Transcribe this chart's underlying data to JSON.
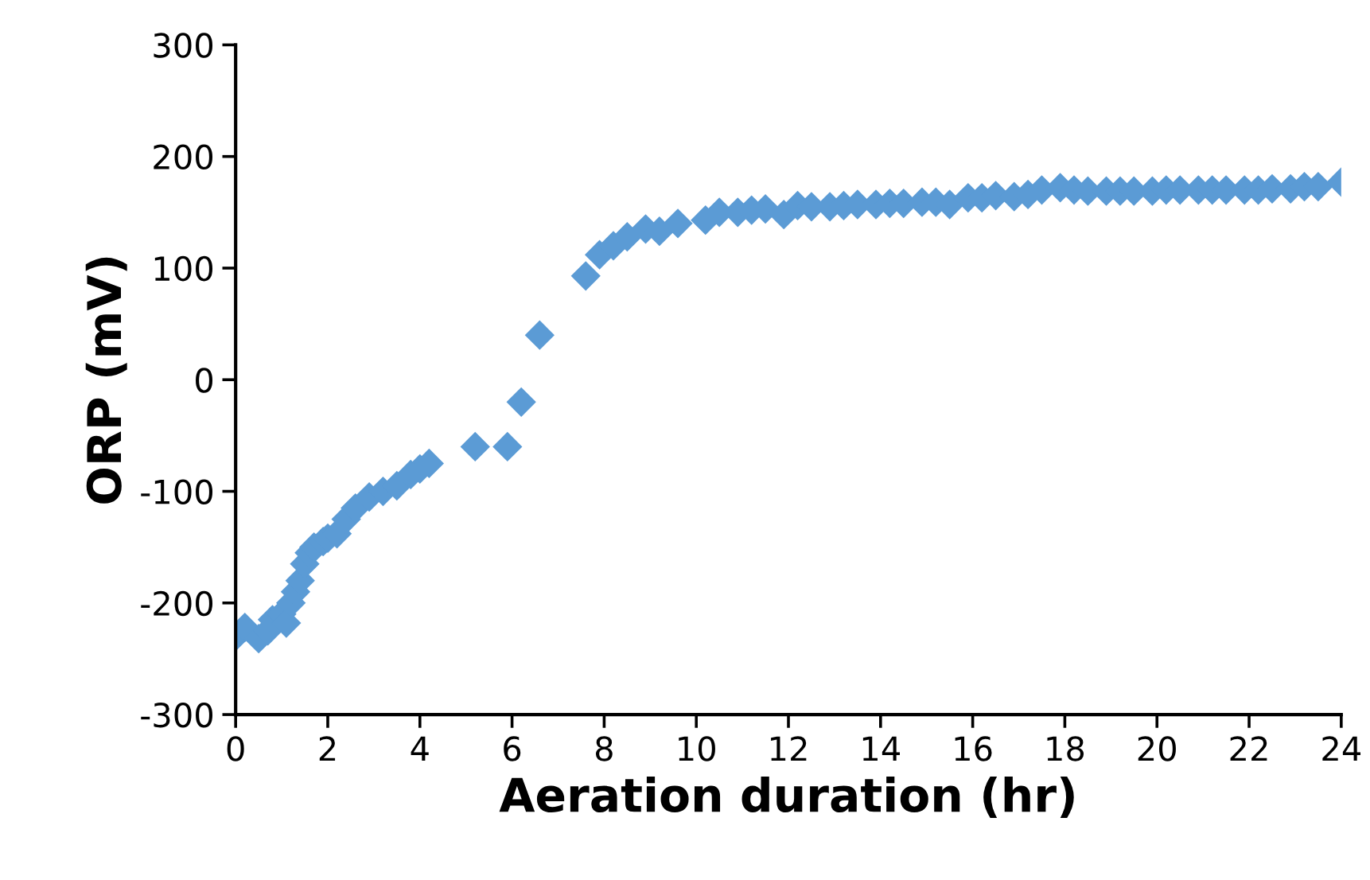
{
  "chart_data": {
    "type": "scatter",
    "xlabel": "Aeration duration (hr)",
    "ylabel": "ORP (mV)",
    "x": [
      0,
      0.2,
      0.5,
      0.7,
      0.8,
      1.0,
      1.1,
      1.2,
      1.3,
      1.4,
      1.5,
      1.6,
      1.7,
      1.9,
      2.0,
      2.2,
      2.4,
      2.6,
      2.9,
      3.2,
      3.5,
      3.8,
      4.0,
      4.2,
      5.2,
      5.9,
      6.2,
      6.6,
      7.6,
      7.9,
      8.2,
      8.5,
      8.9,
      9.2,
      9.6,
      10.2,
      10.5,
      10.9,
      11.2,
      11.5,
      11.9,
      12.2,
      12.5,
      12.9,
      13.2,
      13.5,
      13.9,
      14.2,
      14.5,
      14.9,
      15.2,
      15.5,
      15.9,
      16.2,
      16.5,
      16.9,
      17.2,
      17.5,
      17.9,
      18.2,
      18.5,
      18.9,
      19.2,
      19.5,
      19.9,
      20.2,
      20.5,
      20.9,
      21.2,
      21.5,
      21.9,
      22.2,
      22.5,
      22.9,
      23.2,
      23.5,
      24
    ],
    "series": [
      {
        "color": "#5b9bd5",
        "values": [
          -230,
          -222,
          -232,
          -225,
          -215,
          -210,
          -218,
          -200,
          -190,
          -180,
          -165,
          -155,
          -150,
          -145,
          -142,
          -138,
          -125,
          -115,
          -105,
          -100,
          -95,
          -85,
          -80,
          -75,
          -60,
          -60,
          -20,
          40,
          93,
          112,
          120,
          128,
          135,
          133,
          140,
          143,
          150,
          150,
          152,
          153,
          148,
          156,
          155,
          155,
          156,
          157,
          157,
          158,
          158,
          159,
          159,
          157,
          163,
          163,
          165,
          164,
          166,
          170,
          172,
          170,
          169,
          169,
          169,
          169,
          169,
          170,
          170,
          170,
          170,
          170,
          170,
          170,
          171,
          171,
          173,
          173,
          177
        ]
      }
    ],
    "xlim": [
      0,
      24
    ],
    "xticks": [
      0,
      2,
      4,
      6,
      8,
      10,
      12,
      14,
      16,
      18,
      20,
      22,
      24
    ],
    "ylim": [
      -300,
      300
    ],
    "yticks": [
      -300,
      -200,
      -100,
      0,
      100,
      200,
      300
    ],
    "marker": "diamond",
    "grid": false,
    "legend": false
  }
}
